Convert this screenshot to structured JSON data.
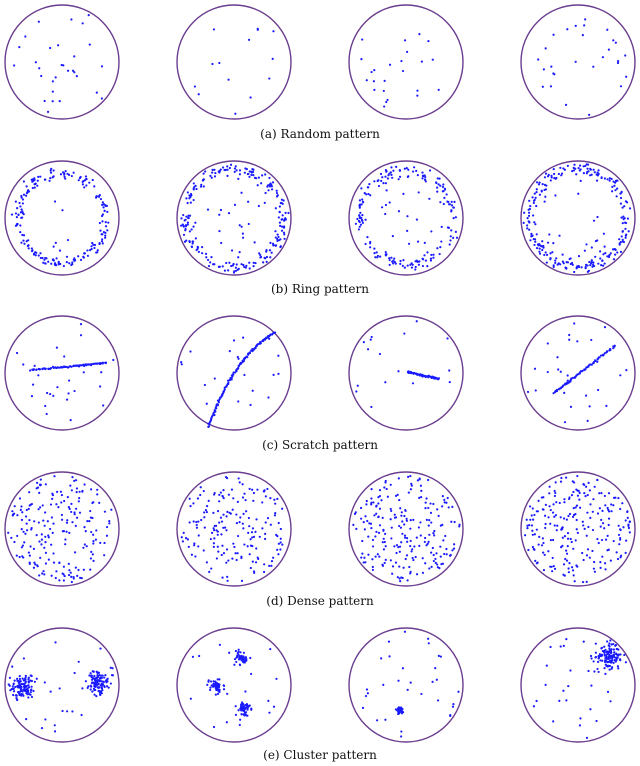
{
  "colors": {
    "wafer_edge": "#6b3d8f",
    "defect": "#1a1aff",
    "background": "#ffffff"
  },
  "rows": [
    {
      "pattern": "random",
      "caption": "(a) Random pattern",
      "wafers": [
        {
          "kind": "random",
          "count": 30,
          "seed": 11
        },
        {
          "kind": "random",
          "count": 14,
          "seed": 23
        },
        {
          "kind": "random",
          "count": 24,
          "seed": 37
        },
        {
          "kind": "random",
          "count": 28,
          "seed": 41
        }
      ]
    },
    {
      "pattern": "ring",
      "caption": "(b) Ring pattern",
      "wafers": [
        {
          "kind": "ring",
          "ring_radius": 0.78,
          "width": 0.09,
          "ring_count": 200,
          "inner_count": 6,
          "seed": 101
        },
        {
          "kind": "ring",
          "ring_radius": 0.86,
          "width": 0.1,
          "ring_count": 220,
          "inner_count": 22,
          "seed": 103
        },
        {
          "kind": "ring",
          "ring_radius": 0.82,
          "width": 0.11,
          "ring_count": 180,
          "inner_count": 18,
          "seed": 107
        },
        {
          "kind": "ring",
          "ring_radius": 0.86,
          "width": 0.11,
          "ring_count": 240,
          "inner_count": 20,
          "seed": 109
        }
      ]
    },
    {
      "pattern": "scratch",
      "caption": "(c) Scratch pattern",
      "wafers": [
        {
          "kind": "scratch",
          "line": [
            [
              -0.55,
              -0.05
            ],
            [
              0.2,
              -0.12
            ],
            [
              0.78,
              -0.18
            ]
          ],
          "line_count": 80,
          "count": 26,
          "seed": 201
        },
        {
          "kind": "scratch",
          "line": [
            [
              0.72,
              -0.72
            ],
            [
              0.0,
              -0.3
            ],
            [
              -0.45,
              0.95
            ]
          ],
          "line_count": 120,
          "count": 20,
          "seed": 203
        },
        {
          "kind": "scratch",
          "line": [
            [
              0.02,
              -0.02
            ],
            [
              0.3,
              0.05
            ],
            [
              0.58,
              0.1
            ]
          ],
          "line_count": 60,
          "count": 16,
          "seed": 207
        },
        {
          "kind": "scratch",
          "line": [
            [
              -0.42,
              0.35
            ],
            [
              0.1,
              -0.05
            ],
            [
              0.65,
              -0.48
            ]
          ],
          "line_count": 70,
          "count": 28,
          "seed": 211
        }
      ]
    },
    {
      "pattern": "dense",
      "caption": "(d) Dense pattern",
      "wafers": [
        {
          "kind": "random",
          "count": 200,
          "seed": 301
        },
        {
          "kind": "random",
          "count": 180,
          "seed": 303
        },
        {
          "kind": "random",
          "count": 220,
          "seed": 307
        },
        {
          "kind": "random",
          "count": 230,
          "seed": 311
        }
      ]
    },
    {
      "pattern": "cluster",
      "caption": "(e) Cluster pattern",
      "wafers": [
        {
          "kind": "cluster",
          "clusters": [
            [
              -0.7,
              0.05,
              0.2,
              110
            ],
            [
              0.62,
              -0.05,
              0.17,
              110
            ]
          ],
          "count": 26,
          "seed": 401
        },
        {
          "kind": "cluster",
          "clusters": [
            [
              0.12,
              -0.48,
              0.1,
              50
            ],
            [
              -0.3,
              0.02,
              0.1,
              50
            ],
            [
              0.18,
              0.42,
              0.1,
              50
            ]
          ],
          "count": 18,
          "seed": 403
        },
        {
          "kind": "cluster",
          "clusters": [
            [
              -0.1,
              0.45,
              0.05,
              35
            ]
          ],
          "count": 32,
          "seed": 407
        },
        {
          "kind": "cluster",
          "clusters": [
            [
              0.56,
              -0.5,
              0.2,
              130
            ]
          ],
          "count": 32,
          "seed": 409
        }
      ]
    }
  ]
}
